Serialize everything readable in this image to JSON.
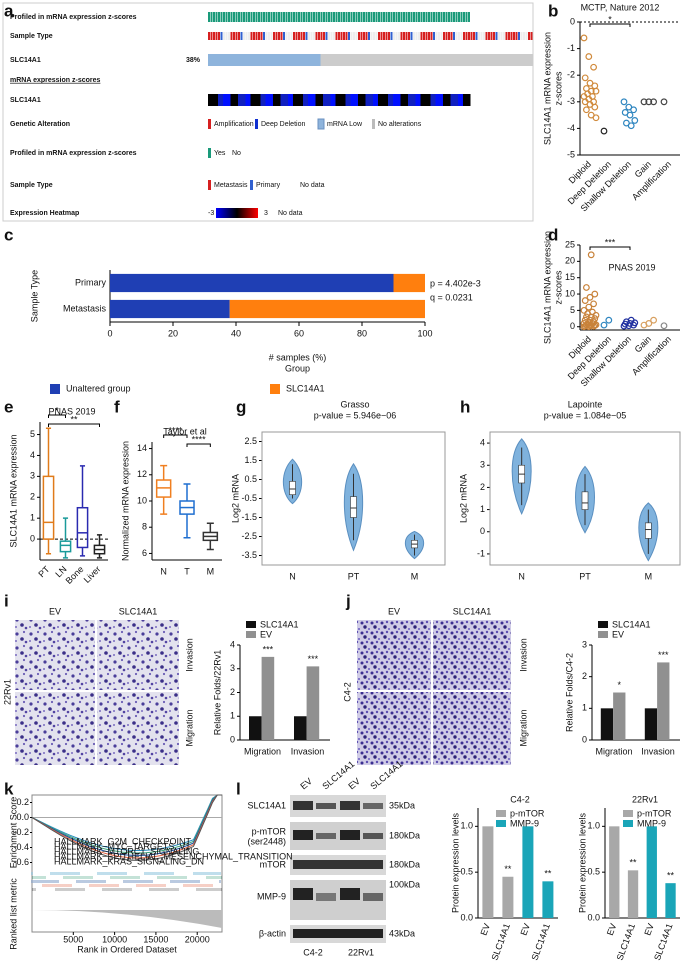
{
  "figure": {
    "panel_labels": [
      "a",
      "b",
      "c",
      "d",
      "e",
      "f",
      "g",
      "h",
      "i",
      "j",
      "k",
      "l"
    ],
    "oncoprint": {
      "tracks": [
        "Profiled in mRNA expression z-scores",
        "Sample Type",
        "SLC14A1",
        "mRNA expression z-scores",
        "SLC14A1"
      ],
      "altered_percent": "38%",
      "legend_rows": [
        "Genetic Alteration",
        "Profiled in mRNA expression z-scores",
        "Sample Type",
        "Expression Heatmap"
      ],
      "alteration_legend": [
        "Amplification",
        "Deep Deletion",
        "mRNA Low",
        "No alterations"
      ],
      "profiled_legend": [
        "Yes",
        "No"
      ],
      "sample_type_legend": [
        "Metastasis",
        "Primary",
        "No data"
      ],
      "heatmap_legend": [
        "-3",
        "3",
        "No data"
      ]
    },
    "micrograph_i": {
      "columns": [
        "EV",
        "SLC14A1"
      ],
      "rows": [
        "Invasion",
        "Migration"
      ],
      "cell_line": "22Rv1"
    },
    "micrograph_j": {
      "columns": [
        "EV",
        "SLC14A1"
      ],
      "rows": [
        "Invasion",
        "Migration"
      ],
      "cell_line": "C4-2"
    },
    "western": {
      "lanes": [
        "EV",
        "SLC14A1",
        "EV",
        "SLC14A1"
      ],
      "proteins": [
        "SLC14A1",
        "p-mTOR",
        "(ser2448)",
        "mTOR",
        "MMP-9",
        "β-actin"
      ],
      "sizes": [
        "35kDa",
        "180kDa",
        "180kDa",
        "100kDa",
        "43kDa"
      ],
      "cell_lines": [
        "C4-2",
        "22Rv1"
      ]
    }
  },
  "chart_data": [
    {
      "type": "strip",
      "title": "MCTP, Nature 2012",
      "y_label": [
        "SLC14A1 mRNA expression",
        "z-scores"
      ],
      "categories": [
        "Diploid",
        "Deep Deletion",
        "Shallow Deletion",
        "Gain",
        "Amplification"
      ],
      "colors": [
        "#d08a3c",
        "#222222",
        "#2f86c0",
        "#444444",
        "#444444"
      ],
      "values": [
        [
          -0.6,
          -1.3,
          -1.7,
          -2.1,
          -2.3,
          -2.4,
          -2.5,
          -2.6,
          -2.6,
          -2.7,
          -2.8,
          -2.8,
          -2.9,
          -3.0,
          -3.0,
          -3.1,
          -3.2,
          -3.3,
          -3.5,
          -3.6
        ],
        [
          -4.1
        ],
        [
          -3.0,
          -3.2,
          -3.3,
          -3.4,
          -3.5,
          -3.7,
          -3.8,
          -3.9
        ],
        [
          -3.0,
          -3.0,
          -3.0
        ],
        [
          -3.0
        ]
      ],
      "ylim": [
        -5,
        0
      ],
      "yticks": [
        0,
        -1,
        -2,
        -3,
        -4,
        -5
      ],
      "annotations": [
        "*"
      ]
    },
    {
      "type": "hbar",
      "y_label": "Sample Type",
      "categories": [
        "Primary",
        "Metastasis"
      ],
      "series": [
        {
          "name": "Unaltered group",
          "color": "#1f3fb4",
          "values": [
            90,
            38
          ]
        },
        {
          "name": "SLC14A1",
          "color": "#ff7f0e",
          "values": [
            10,
            62
          ]
        }
      ],
      "xlim": [
        0,
        100
      ],
      "xticks": [
        0,
        20,
        40,
        60,
        80,
        100
      ],
      "x_label": "# samples (%)",
      "legend_title": "Group",
      "annotations": [
        "p = 4.402e-3",
        "q = 0.0231"
      ]
    },
    {
      "type": "strip",
      "title": "PNAS 2019",
      "y_label": [
        "SLC14A1 mRNA expression",
        "z-scores"
      ],
      "categories": [
        "Diploid",
        "Deep Deletion",
        "Shallow Deletion",
        "Gain",
        "Amplification"
      ],
      "colors": [
        "#c8823a",
        "#2f86c0",
        "#2030a0",
        "#d8a060",
        "#888888"
      ],
      "values": [
        [
          0,
          0,
          0.1,
          0.2,
          0.3,
          0.4,
          0.5,
          0.5,
          0.6,
          0.8,
          1,
          1,
          1.2,
          1.5,
          2,
          2,
          2.5,
          3,
          3,
          3.5,
          4,
          4.5,
          5,
          6,
          7,
          8,
          9,
          10,
          12,
          22
        ],
        [
          0.5,
          2
        ],
        [
          0.2,
          0.3,
          0.5,
          0.8,
          1,
          1.2,
          1.5,
          2
        ],
        [
          0.5,
          1,
          2
        ],
        [
          0.3
        ]
      ],
      "ylim": [
        -1,
        25
      ],
      "yticks": [
        0,
        5,
        10,
        15,
        20,
        25
      ],
      "annotations": [
        "***"
      ]
    },
    {
      "type": "box",
      "title": "PNAS 2019",
      "y_label": "SLC14A1 mRNA expression",
      "categories": [
        "PT",
        "LN",
        "Bone",
        "Liver"
      ],
      "colors": [
        "#e07b1a",
        "#1a9a9a",
        "#2a2ab0",
        "#222222"
      ],
      "values": [
        [
          -0.7,
          0,
          0.8,
          3,
          5.3
        ],
        [
          -0.9,
          -0.6,
          -0.3,
          -0.1,
          1
        ],
        [
          -0.8,
          -0.4,
          0.3,
          1.5,
          3.5
        ],
        [
          -0.9,
          -0.7,
          -0.5,
          -0.3,
          0.2
        ]
      ],
      "reference_line": 0,
      "ylim": [
        -1,
        5.6
      ],
      "yticks": [
        0,
        1,
        2,
        3,
        4,
        5
      ],
      "annotations": [
        "*",
        "**"
      ]
    },
    {
      "type": "box",
      "title": "Taylor et al",
      "y_label": "Normalized mRNA expression",
      "categories": [
        "N",
        "T",
        "M"
      ],
      "colors": [
        "#f07f20",
        "#1f6fd0",
        "#333333"
      ],
      "values": [
        [
          9,
          10.3,
          11,
          11.6,
          12.7
        ],
        [
          7.2,
          9,
          9.5,
          10,
          11.3
        ],
        [
          6.3,
          7,
          7.3,
          7.6,
          8.3
        ]
      ],
      "ylim": [
        5.5,
        14.5
      ],
      "yticks": [
        6,
        8,
        10,
        12,
        14
      ],
      "annotations": [
        "****",
        "****"
      ]
    },
    {
      "type": "violin",
      "title": "Grasso",
      "subtitle": "p-value = 5.946e−06",
      "y_label": "Log2 mRNA",
      "categories": [
        "N",
        "PT",
        "M"
      ],
      "color": "#7fb2dd",
      "values": [
        [
          -0.5,
          -0.3,
          0,
          0.4,
          1.3
        ],
        [
          -2.7,
          -1.5,
          -1,
          -0.4,
          0.8
        ],
        [
          -3.5,
          -3.1,
          -2.9,
          -2.7,
          -2.4
        ]
      ],
      "ylim": [
        -4,
        3
      ],
      "yticks": [
        -3.5,
        -2.5,
        -1.5,
        -0.5,
        0.5,
        1.5,
        2.5
      ]
    },
    {
      "type": "violin",
      "title": "Lapointe",
      "subtitle": "p-value = 1.084e−05",
      "y_label": "Log2 mRNA",
      "categories": [
        "N",
        "PT",
        "M"
      ],
      "color": "#7fb2dd",
      "values": [
        [
          1.2,
          2.2,
          2.6,
          3,
          3.8
        ],
        [
          0.3,
          1,
          1.3,
          1.8,
          2.6
        ],
        [
          -1,
          -0.3,
          0.1,
          0.4,
          1
        ]
      ],
      "ylim": [
        -1.5,
        4.5
      ],
      "yticks": [
        -1,
        0,
        1,
        2,
        3,
        4
      ]
    },
    {
      "type": "bar",
      "y_label": "Relative Folds/22Rv1",
      "categories": [
        "Migration",
        "Invasion"
      ],
      "series": [
        {
          "name": "SLC14A1",
          "color": "#111111",
          "values": [
            1,
            1
          ]
        },
        {
          "name": "EV",
          "color": "#909090",
          "values": [
            3.5,
            3.1
          ],
          "significance": [
            "***",
            "***"
          ]
        }
      ],
      "ylim": [
        0,
        4
      ],
      "yticks": [
        0,
        1,
        2,
        3,
        4
      ]
    },
    {
      "type": "bar",
      "y_label": "Relative Folds/C4-2",
      "categories": [
        "Migration",
        "Invasion"
      ],
      "series": [
        {
          "name": "SLC14A1",
          "color": "#111111",
          "values": [
            1,
            1
          ]
        },
        {
          "name": "EV",
          "color": "#909090",
          "values": [
            1.5,
            2.45
          ],
          "significance": [
            "*",
            "***"
          ]
        }
      ],
      "ylim": [
        0,
        3
      ],
      "yticks": [
        0,
        1,
        2,
        3
      ]
    },
    {
      "type": "bar",
      "grouping": "by_series",
      "title": "C4-2",
      "y_label": "Protein expression levels",
      "categories": [
        "EV",
        "SLC14A1"
      ],
      "series": [
        {
          "name": "p-mTOR",
          "color": "#a8a8a8",
          "values": [
            1,
            0.45
          ],
          "significance": [
            null,
            "**"
          ]
        },
        {
          "name": "MMP-9",
          "color": "#1aa5b8",
          "values": [
            1,
            0.4
          ],
          "significance": [
            null,
            "**"
          ]
        }
      ],
      "ylim": [
        0,
        1.2
      ],
      "yticks": [
        {
          "value": 0,
          "label": "0.0"
        },
        {
          "value": 0.5,
          "label": "0.5"
        },
        {
          "value": 1,
          "label": "1.0"
        }
      ]
    },
    {
      "type": "bar",
      "grouping": "by_series",
      "title": "22Rv1",
      "y_label": "Protein expression levels",
      "categories": [
        "EV",
        "SLC14A1"
      ],
      "series": [
        {
          "name": "p-mTOR",
          "color": "#a8a8a8",
          "values": [
            1,
            0.52
          ],
          "significance": [
            null,
            "**"
          ]
        },
        {
          "name": "MMP-9",
          "color": "#1aa5b8",
          "values": [
            1,
            0.38
          ],
          "significance": [
            null,
            "**"
          ]
        }
      ],
      "ylim": [
        0,
        1.2
      ],
      "yticks": [
        {
          "value": 0,
          "label": "0.0"
        },
        {
          "value": 0.5,
          "label": "0.5"
        },
        {
          "value": 1,
          "label": "1.0"
        }
      ]
    },
    {
      "type": "gsea",
      "y_label": "Enrichment Score",
      "metric_label": "Ranked list metric",
      "x_label": "Rank in Ordered Dataset",
      "legend": [
        "HALLMARK_G2M_CHECKPOINT",
        "HALLMARK_MYC_TARGETS_V1",
        "HALLMARK_MTORC1_SIGNALING",
        "HALLMARK_EPITHELIAL_MESENCHYMAL_TRANSITION",
        "HALLMARK_KRAS_SIGNALING_DN"
      ],
      "xlim": [
        0,
        23000
      ],
      "xticks": [
        5000,
        10000,
        15000,
        20000
      ],
      "ylim": [
        -0.7,
        0.3
      ],
      "yticks": [
        {
          "value": 0.2,
          "label": "0.2"
        },
        {
          "value": 0,
          "label": "0.0"
        },
        {
          "value": -0.2,
          "label": "-0.2"
        },
        {
          "value": -0.4,
          "label": "-0.4"
        },
        {
          "value": -0.6,
          "label": "-0.6"
        }
      ]
    }
  ]
}
